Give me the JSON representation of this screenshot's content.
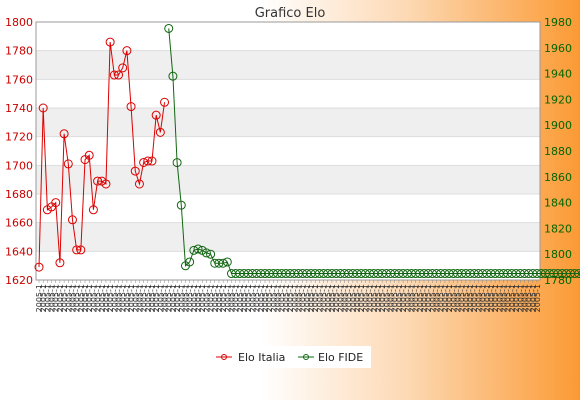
{
  "chart_data": {
    "type": "line",
    "title": "Grafico Elo",
    "xlabel": "",
    "ylabel": "",
    "grid": true,
    "legend_position": "bottom",
    "y_left": {
      "min": 1620,
      "max": 1800,
      "step": 20,
      "color": "#cc0000"
    },
    "y_right": {
      "min": 1780,
      "max": 1980,
      "step": 20,
      "color": "#006600"
    },
    "x_tick_label_sample": "2005-1",
    "x_count": 120,
    "series": [
      {
        "name": "Elo Italia",
        "axis": "left",
        "color": "#dd0000",
        "start_index": 0,
        "values": [
          1629,
          1740,
          1669,
          1671,
          1674,
          1632,
          1722,
          1701,
          1662,
          1641,
          1641,
          1704,
          1707,
          1669,
          1689,
          1689,
          1687,
          1786,
          1763,
          1763,
          1768,
          1780,
          1741,
          1696,
          1687,
          1702,
          1703,
          1703,
          1735,
          1723,
          1744
        ]
      },
      {
        "name": "Elo FIDE",
        "axis": "right",
        "color": "#116611",
        "start_index": 31,
        "values": [
          1975,
          1938,
          1871,
          1838,
          1791,
          1794,
          1803,
          1804,
          1803,
          1801,
          1800,
          1793,
          1793,
          1793,
          1794,
          1785,
          1785,
          1785,
          1785,
          1785,
          1785,
          1785,
          1785,
          1785,
          1785,
          1785,
          1785,
          1785,
          1785,
          1785,
          1785,
          1785,
          1785,
          1785,
          1785,
          1785,
          1785,
          1785,
          1785,
          1785,
          1785,
          1785,
          1785,
          1785,
          1785,
          1785,
          1785,
          1785,
          1785,
          1785,
          1785,
          1785,
          1785,
          1785,
          1785,
          1785,
          1785,
          1785,
          1785,
          1785,
          1785,
          1785,
          1785,
          1785,
          1785,
          1785,
          1785,
          1785,
          1785,
          1785,
          1785,
          1785,
          1785,
          1785,
          1785,
          1785,
          1785,
          1785,
          1785,
          1785,
          1785,
          1785,
          1785,
          1785,
          1785,
          1785,
          1785,
          1785,
          1785,
          1785,
          1785,
          1785,
          1785,
          1785,
          1785,
          1785,
          1785,
          1785,
          1785,
          1785,
          1785,
          1785,
          1785,
          1785,
          1785,
          1785,
          1785,
          1785,
          1785,
          1785
        ]
      }
    ]
  }
}
